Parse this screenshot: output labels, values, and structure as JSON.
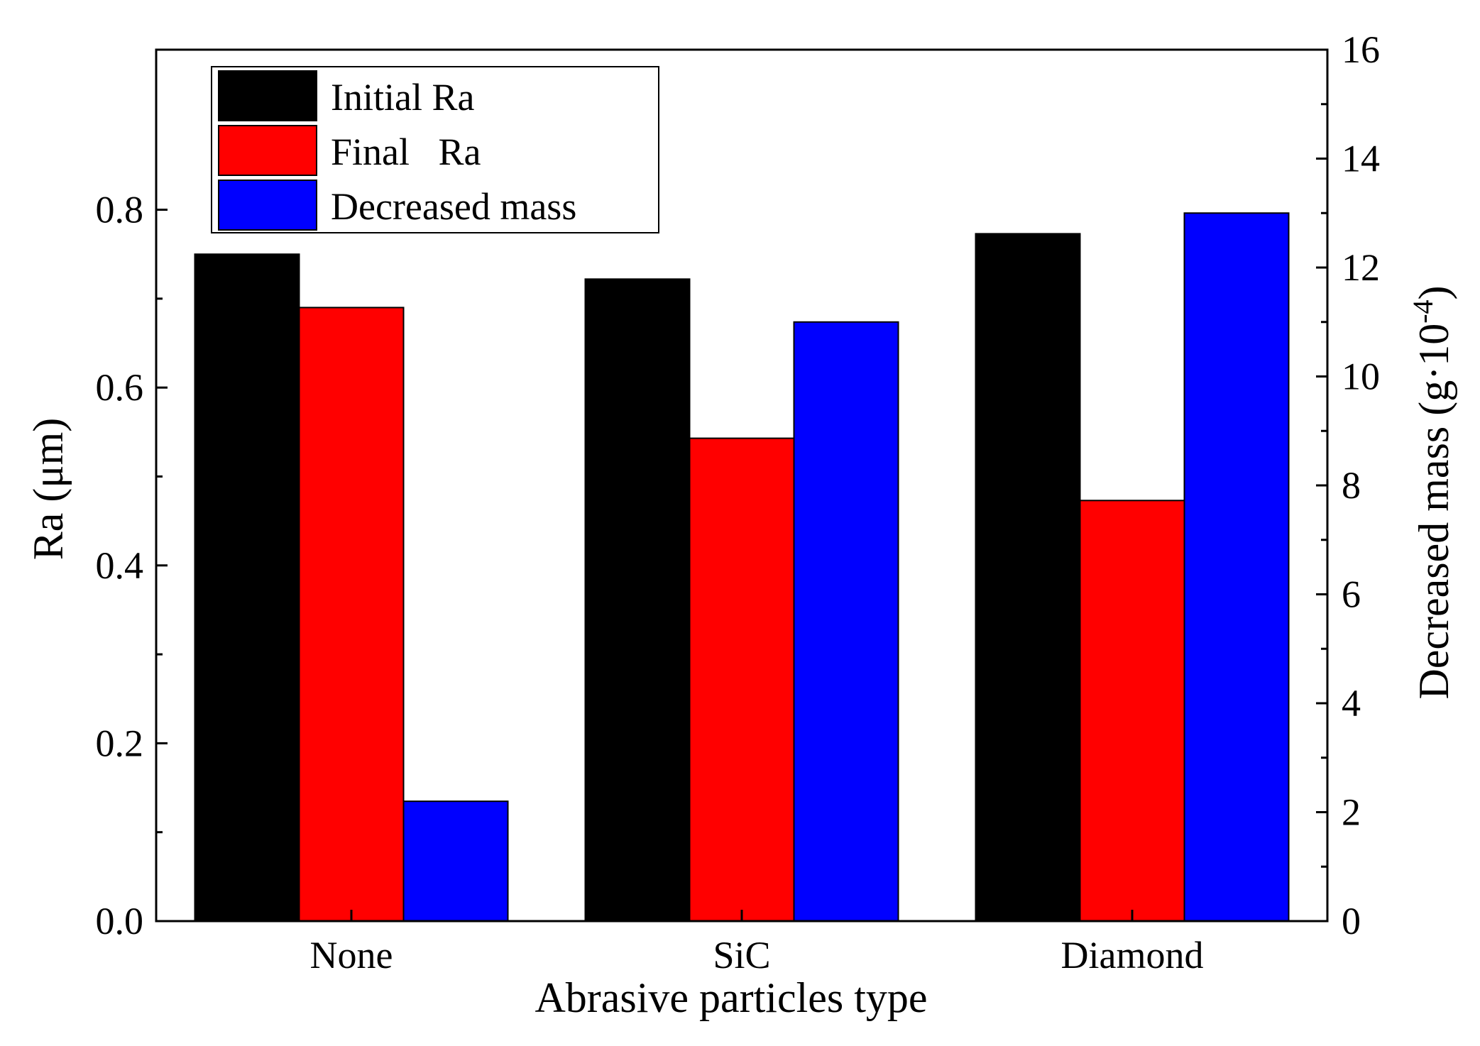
{
  "chart_data": {
    "type": "bar",
    "title": "",
    "categories": [
      "None",
      "SiC",
      "Diamond"
    ],
    "xlabel": "Abrasive particles type",
    "ylabel": "Ra (μm)",
    "y2label_main": "Decreased mass (g·10",
    "y2label_sup": "-4",
    "y2label_close": ")",
    "ylim": [
      0,
      0.98
    ],
    "y2lim": [
      0,
      16
    ],
    "yticks": [
      "0.0",
      "0.2",
      "0.4",
      "0.6",
      "0.8"
    ],
    "y2ticks": [
      "0",
      "2",
      "4",
      "6",
      "8",
      "10",
      "12",
      "14",
      "16"
    ],
    "legend_position": "top-left",
    "series": [
      {
        "name": "Initial Ra",
        "axis": "left",
        "color": "#000000",
        "values": [
          0.75,
          0.722,
          0.773
        ]
      },
      {
        "name": "Final   Ra",
        "axis": "left",
        "color": "#ff0000",
        "values": [
          0.69,
          0.543,
          0.473
        ]
      },
      {
        "name": "Decreased mass",
        "axis": "right",
        "color": "#0000ff",
        "values": [
          2.2,
          11.0,
          13.0
        ]
      }
    ]
  }
}
